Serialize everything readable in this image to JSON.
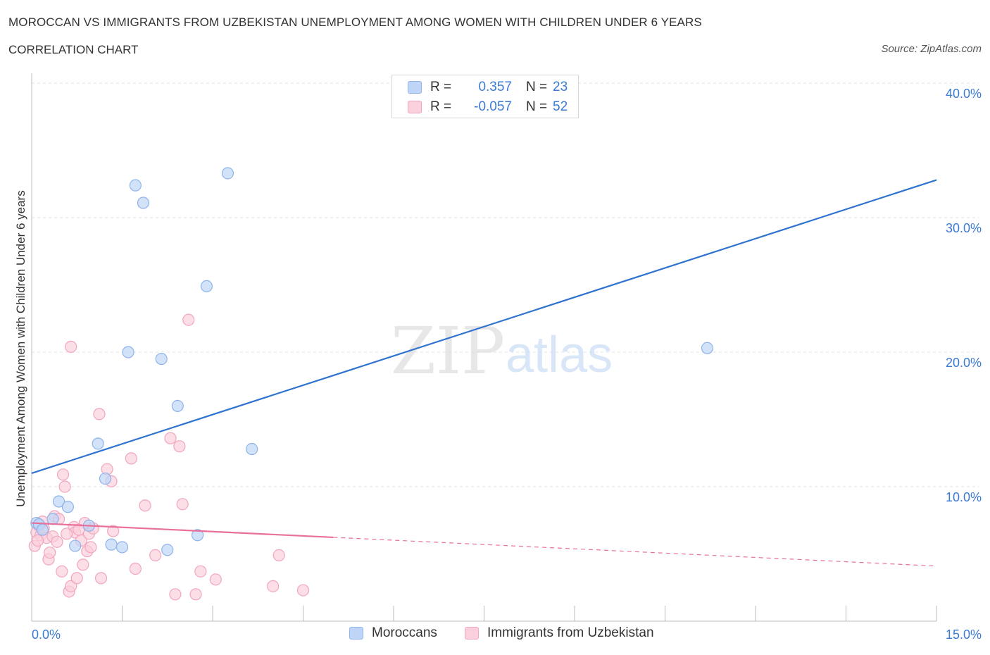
{
  "header": {
    "title": "MOROCCAN VS IMMIGRANTS FROM UZBEKISTAN UNEMPLOYMENT AMONG WOMEN WITH CHILDREN UNDER 6 YEARS",
    "subtitle": "CORRELATION CHART",
    "source": "Source: ZipAtlas.com"
  },
  "legend": {
    "moroccans": {
      "r_label": "R =",
      "r_value": "0.357",
      "n_label": "N =",
      "n_value": "23"
    },
    "uzbekistan": {
      "r_label": "R =",
      "r_value": "-0.057",
      "n_label": "N =",
      "n_value": "52"
    }
  },
  "bottom_legend": {
    "moroccans": "Moroccans",
    "uzbekistan": "Immigrants from Uzbekistan"
  },
  "watermark": {
    "zip": "ZIP",
    "atlas": "atlas"
  },
  "colors": {
    "blue_fill": "#bfd5f7",
    "blue_stroke": "#8fb3eb",
    "blue_line": "#2f73d0",
    "pink_fill": "#fbd0dd",
    "pink_stroke": "#f1a6bd",
    "pink_line": "#e8709a",
    "grid": "#e3e3e3",
    "axis_text": "#3a7bd5"
  },
  "chart_data": {
    "type": "scatter",
    "title": "MOROCCAN VS IMMIGRANTS FROM UZBEKISTAN UNEMPLOYMENT AMONG WOMEN WITH CHILDREN UNDER 6 YEARS",
    "xlabel": "",
    "ylabel": "Unemployment Among Women with Children Under 6 years",
    "xlim": [
      0,
      15
    ],
    "ylim": [
      0,
      40
    ],
    "x_tick_labels": [
      "0.0%",
      "15.0%"
    ],
    "y_ticks": [
      10,
      20,
      30,
      40
    ],
    "y_tick_labels": [
      "10.0%",
      "20.0%",
      "30.0%",
      "40.0%"
    ],
    "grid": true,
    "series": [
      {
        "name": "Moroccans",
        "R": 0.357,
        "N": 23,
        "trend": {
          "x": [
            0,
            15
          ],
          "y": [
            11.0,
            32.8
          ],
          "dashed_from": null
        },
        "points": [
          {
            "x": 0.08,
            "y": 7.3
          },
          {
            "x": 0.12,
            "y": 7.2
          },
          {
            "x": 0.18,
            "y": 6.8
          },
          {
            "x": 0.35,
            "y": 7.6
          },
          {
            "x": 0.45,
            "y": 8.9
          },
          {
            "x": 0.6,
            "y": 8.5
          },
          {
            "x": 0.72,
            "y": 5.6
          },
          {
            "x": 0.95,
            "y": 7.1
          },
          {
            "x": 1.1,
            "y": 13.2
          },
          {
            "x": 1.22,
            "y": 10.6
          },
          {
            "x": 1.32,
            "y": 5.7
          },
          {
            "x": 1.5,
            "y": 5.5
          },
          {
            "x": 1.6,
            "y": 20.0
          },
          {
            "x": 1.72,
            "y": 32.4
          },
          {
            "x": 1.85,
            "y": 31.1
          },
          {
            "x": 2.15,
            "y": 19.5
          },
          {
            "x": 2.25,
            "y": 5.3
          },
          {
            "x": 2.42,
            "y": 16.0
          },
          {
            "x": 2.75,
            "y": 6.4
          },
          {
            "x": 2.9,
            "y": 24.9
          },
          {
            "x": 3.25,
            "y": 33.3
          },
          {
            "x": 3.65,
            "y": 12.8
          },
          {
            "x": 11.2,
            "y": 20.3
          }
        ]
      },
      {
        "name": "Immigrants from Uzbekistan",
        "R": -0.057,
        "N": 52,
        "trend": {
          "x": [
            0,
            15
          ],
          "y": [
            7.3,
            4.1
          ],
          "dashed_from": 5.0
        },
        "points": [
          {
            "x": 0.05,
            "y": 5.6
          },
          {
            "x": 0.08,
            "y": 6.6
          },
          {
            "x": 0.12,
            "y": 7.1
          },
          {
            "x": 0.15,
            "y": 6.4
          },
          {
            "x": 0.2,
            "y": 6.9
          },
          {
            "x": 0.25,
            "y": 6.2
          },
          {
            "x": 0.28,
            "y": 4.6
          },
          {
            "x": 0.3,
            "y": 5.1
          },
          {
            "x": 0.38,
            "y": 7.8
          },
          {
            "x": 0.45,
            "y": 7.6
          },
          {
            "x": 0.5,
            "y": 3.7
          },
          {
            "x": 0.52,
            "y": 10.9
          },
          {
            "x": 0.55,
            "y": 10.0
          },
          {
            "x": 0.62,
            "y": 2.2
          },
          {
            "x": 0.65,
            "y": 2.6
          },
          {
            "x": 0.65,
            "y": 20.4
          },
          {
            "x": 0.7,
            "y": 7.0
          },
          {
            "x": 0.72,
            "y": 6.6
          },
          {
            "x": 0.75,
            "y": 3.2
          },
          {
            "x": 0.82,
            "y": 6.0
          },
          {
            "x": 0.85,
            "y": 4.2
          },
          {
            "x": 0.88,
            "y": 7.3
          },
          {
            "x": 0.92,
            "y": 5.2
          },
          {
            "x": 0.95,
            "y": 6.5
          },
          {
            "x": 0.98,
            "y": 5.5
          },
          {
            "x": 1.12,
            "y": 15.4
          },
          {
            "x": 1.15,
            "y": 3.2
          },
          {
            "x": 1.25,
            "y": 11.3
          },
          {
            "x": 1.32,
            "y": 10.4
          },
          {
            "x": 1.35,
            "y": 6.7
          },
          {
            "x": 1.65,
            "y": 12.1
          },
          {
            "x": 1.72,
            "y": 3.9
          },
          {
            "x": 1.88,
            "y": 8.6
          },
          {
            "x": 2.05,
            "y": 4.9
          },
          {
            "x": 2.3,
            "y": 13.6
          },
          {
            "x": 2.38,
            "y": 2.0
          },
          {
            "x": 2.45,
            "y": 13.0
          },
          {
            "x": 2.5,
            "y": 8.7
          },
          {
            "x": 2.6,
            "y": 22.4
          },
          {
            "x": 2.72,
            "y": 2.0
          },
          {
            "x": 2.8,
            "y": 3.7
          },
          {
            "x": 3.05,
            "y": 3.1
          },
          {
            "x": 4.0,
            "y": 2.6
          },
          {
            "x": 4.1,
            "y": 4.9
          },
          {
            "x": 4.5,
            "y": 2.3
          },
          {
            "x": 0.1,
            "y": 6.0
          },
          {
            "x": 0.18,
            "y": 7.4
          },
          {
            "x": 0.35,
            "y": 6.3
          },
          {
            "x": 0.42,
            "y": 5.9
          },
          {
            "x": 0.78,
            "y": 6.8
          },
          {
            "x": 1.02,
            "y": 6.9
          },
          {
            "x": 0.58,
            "y": 6.5
          }
        ]
      }
    ]
  }
}
